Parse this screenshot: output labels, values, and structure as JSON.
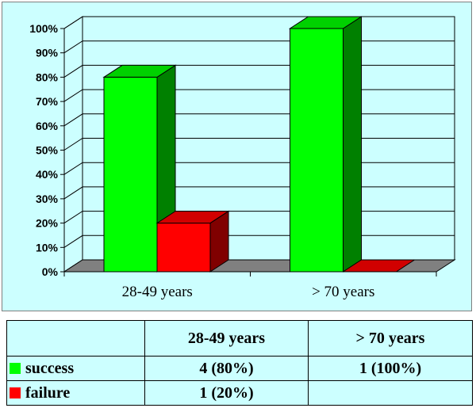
{
  "colors": {
    "background": "#ccffff",
    "success": "#00ff00",
    "failure": "#ff0000",
    "floor": "#808080"
  },
  "chart_data": {
    "type": "bar",
    "title": "",
    "xlabel": "",
    "ylabel": "",
    "categories": [
      "28-49 years",
      "> 70 years"
    ],
    "series": [
      {
        "name": "success",
        "values": [
          80,
          100
        ]
      },
      {
        "name": "failure",
        "values": [
          20,
          0
        ]
      }
    ],
    "ylim": [
      0,
      100
    ],
    "yticks": [
      "0%",
      "10%",
      "20%",
      "30%",
      "40%",
      "50%",
      "60%",
      "70%",
      "80%",
      "90%",
      "100%"
    ],
    "grid": true,
    "three_d": true
  },
  "table": {
    "headers": [
      "",
      "28-49 years",
      "> 70 years"
    ],
    "rows": [
      {
        "label": "success",
        "cells": [
          "4 (80%)",
          "1 (100%)"
        ]
      },
      {
        "label": "failure",
        "cells": [
          "1 (20%)",
          ""
        ]
      }
    ]
  }
}
